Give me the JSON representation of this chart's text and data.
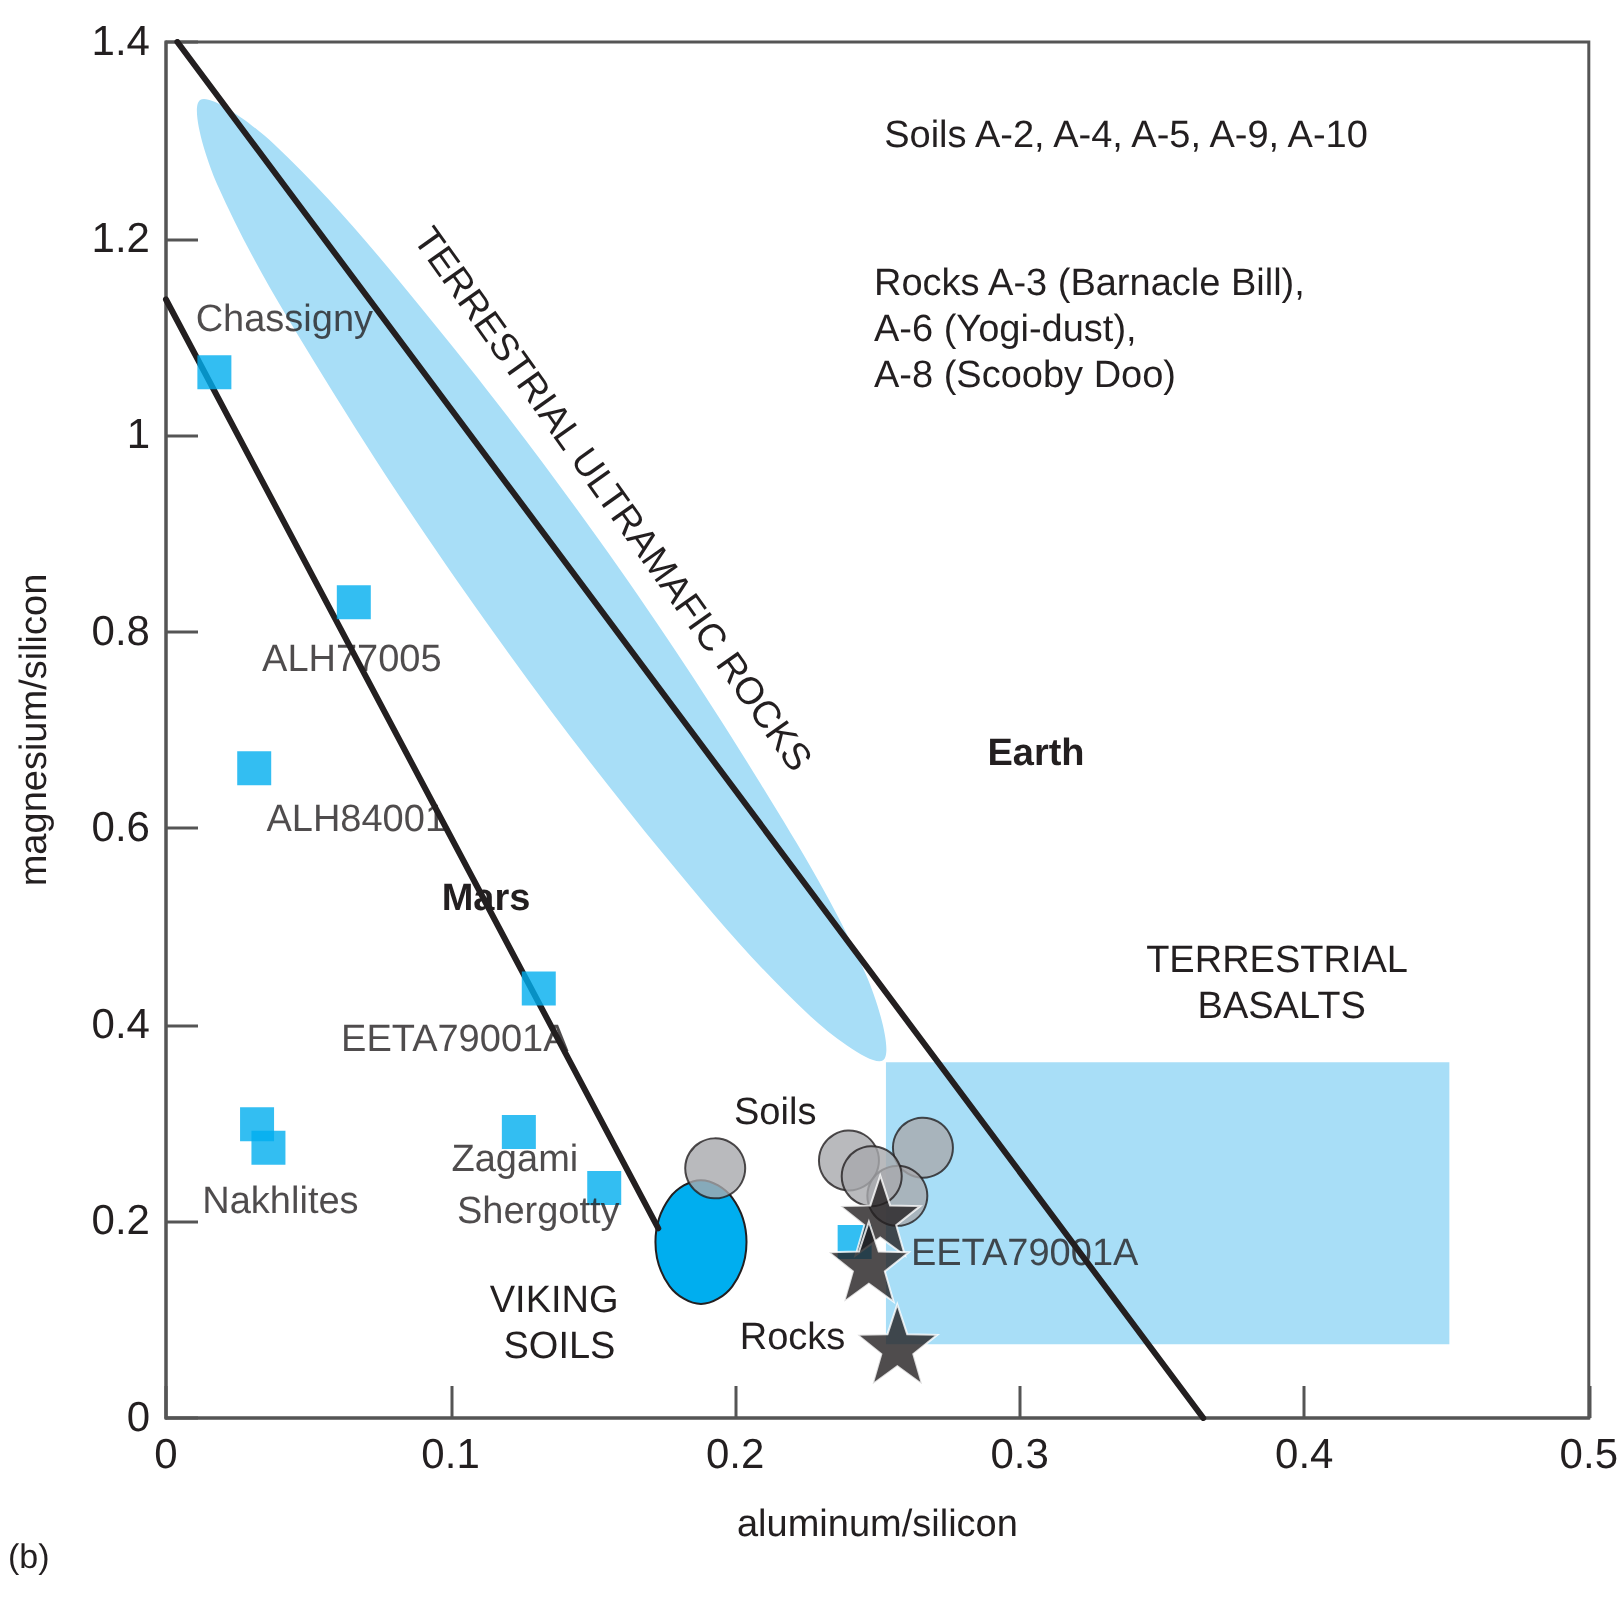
{
  "chart_data": {
    "type": "scatter",
    "xlabel": "aluminum/silicon",
    "ylabel": "magnesium/silicon",
    "xlim": [
      0,
      0.5
    ],
    "xticks": [
      0,
      0.1,
      0.2,
      0.3,
      0.4,
      0.5
    ],
    "ylim": [
      0,
      1.4
    ],
    "yticks": [
      0,
      0.2,
      0.4,
      0.6,
      0.8,
      1,
      1.2,
      1.4
    ],
    "grid": false,
    "legend": false,
    "series": [
      {
        "type": "area",
        "name": "TERRESTRIAL ULTRAMAFIC ROCKS",
        "color": "#a8def7",
        "x": [
          0.252,
          0.246,
          0.209,
          0.152,
          0.089,
          0.038,
          0.012,
          0.018,
          0.055,
          0.112,
          0.175,
          0.226
        ],
        "values": [
          0.364,
          0.451,
          0.645,
          0.894,
          1.132,
          1.296,
          1.341,
          1.255,
          1.061,
          0.812,
          0.573,
          0.41
        ]
      },
      {
        "type": "area",
        "name": "TERRESTRIAL BASALTS",
        "color": "#a8def7",
        "x": [
          0.253,
          0.451,
          0.451,
          0.253
        ],
        "values": [
          0.362,
          0.362,
          0.075,
          0.075
        ]
      },
      {
        "type": "line",
        "color": "#231f20",
        "marker": "none",
        "line_style": "solid",
        "x": [
          0.004,
          0.3645
        ],
        "values": [
          1.4,
          0
        ]
      },
      {
        "type": "line",
        "name": "Mars",
        "color": "#231f20",
        "marker": "none",
        "line_style": "solid",
        "x": [
          0,
          0.173
        ],
        "values": [
          1.138,
          0.193
        ]
      },
      {
        "type": "area",
        "name": "VIKING SOILS",
        "color": "#00aeef",
        "x": [
          0.204,
          0.199,
          0.188,
          0.177,
          0.172,
          0.177,
          0.188,
          0.199
        ],
        "values": [
          0.179,
          0.224,
          0.242,
          0.224,
          0.179,
          0.134,
          0.116,
          0.134
        ]
      },
      {
        "color": "#00aeef",
        "marker": "square",
        "x": [
          0.017,
          0.066,
          0.031,
          0.131,
          0.032,
          0.036,
          0.124,
          0.154,
          0.242
        ],
        "values": [
          1.064,
          0.83,
          0.661,
          0.437,
          0.299,
          0.275,
          0.291,
          0.234,
          0.179
        ],
        "value_labels": [
          "Chassigny",
          "ALH77005",
          "ALH84001",
          "EETA79001A",
          null,
          "Nakhlites",
          "Zagami",
          "Shergotty",
          "EETA79001A"
        ]
      },
      {
        "name": "Soils",
        "color": "#a7a9ac",
        "marker": "circle",
        "x": [
          0.193,
          0.24,
          0.266,
          0.257,
          0.248
        ],
        "values": [
          0.254,
          0.262,
          0.275,
          0.226,
          0.246
        ]
      },
      {
        "name": "Rocks",
        "color": "#231f20",
        "marker": "star",
        "x": [
          0.251,
          0.247,
          0.257
        ],
        "values": [
          0.206,
          0.159,
          0.075
        ]
      }
    ],
    "annotations": [
      "Soils A-2, A-4, A-5, A-9, A-10",
      "Rocks A-3 (Barnacle Bill),\nA-6 (Yogi-dust),\nA-8 (Scooby Doo)",
      "Earth",
      "(b)"
    ]
  }
}
